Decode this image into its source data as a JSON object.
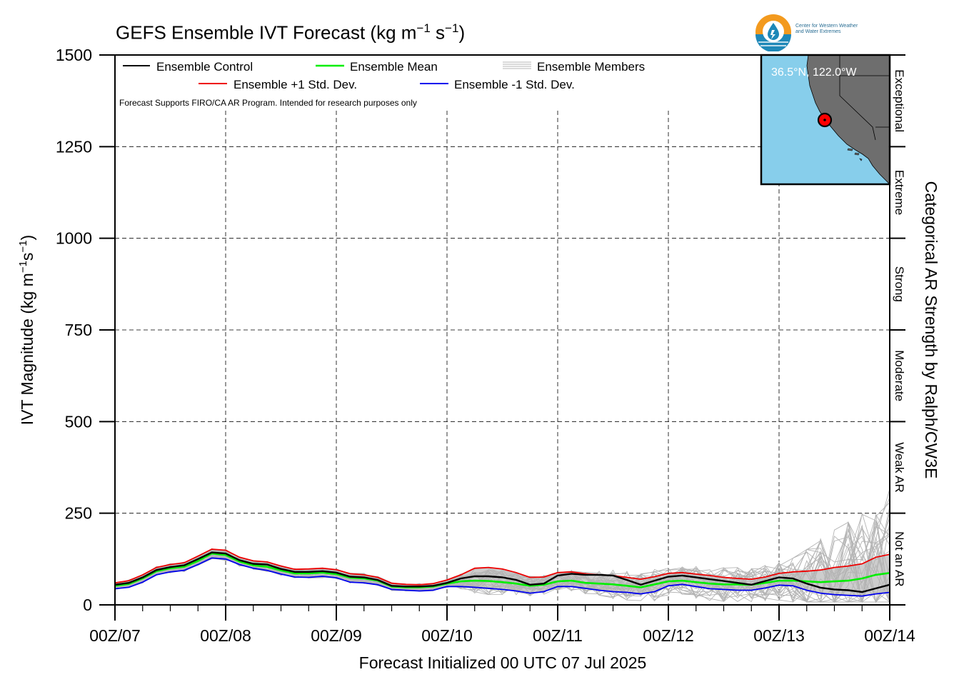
{
  "title": {
    "main": "GEFS Ensemble IVT Forecast (kg m",
    "exp1": "−1",
    "mid": " s",
    "exp2": "−1",
    "end": ")"
  },
  "logo": {
    "line1": "Center for Western Weather",
    "line2": "and Water Extremes",
    "icon": "water-drop-logo-icon",
    "colors": {
      "orange": "#f39a1e",
      "blue": "#1e88b8"
    }
  },
  "inset_map": {
    "label": "36.5°N, 122.0°W",
    "ocean_color": "#87ceeb",
    "land_color": "#6e6e6e",
    "marker_color": "#ff0000"
  },
  "colors": {
    "control": "#000000",
    "mean": "#00ee00",
    "plus_std": "#ee0000",
    "minus_std": "#0000ee",
    "members": "#b4b4b4",
    "spread": "#c8c8c8"
  },
  "chart_data": {
    "type": "line",
    "title": "GEFS Ensemble IVT Forecast (kg m−1 s−1)",
    "xlabel": "Forecast Initialized 00 UTC 07 Jul 2025",
    "ylabel": "IVT Magnitude (kg m−1s−1)",
    "right_label": "Categorical AR Strength by Ralph/CW3E",
    "note": "Forecast Supports FIRO/CA AR Program. Intended for research purposes only",
    "ylim": [
      0,
      1500
    ],
    "yticks": [
      0,
      250,
      500,
      750,
      1000,
      1250,
      1500
    ],
    "xlim": [
      0,
      168
    ],
    "xticks": [
      {
        "hour": 0,
        "label": "00Z/07"
      },
      {
        "hour": 24,
        "label": "00Z/08"
      },
      {
        "hour": 48,
        "label": "00Z/09"
      },
      {
        "hour": 72,
        "label": "00Z/10"
      },
      {
        "hour": 96,
        "label": "00Z/11"
      },
      {
        "hour": 120,
        "label": "00Z/12"
      },
      {
        "hour": 144,
        "label": "00Z/13"
      },
      {
        "hour": 168,
        "label": "00Z/14"
      }
    ],
    "grid": true,
    "legend_position": "top-left",
    "ar_categories": [
      {
        "label": "Not an AR",
        "min": 0,
        "max": 250
      },
      {
        "label": "Weak AR",
        "min": 250,
        "max": 500
      },
      {
        "label": "Moderate",
        "min": 500,
        "max": 750
      },
      {
        "label": "Strong",
        "min": 750,
        "max": 1000
      },
      {
        "label": "Extreme",
        "min": 1000,
        "max": 1250
      },
      {
        "label": "Exceptional",
        "min": 1250,
        "max": 1500
      }
    ],
    "x": [
      0,
      3,
      6,
      9,
      12,
      15,
      18,
      21,
      24,
      27,
      30,
      33,
      36,
      39,
      42,
      45,
      48,
      51,
      54,
      57,
      60,
      63,
      66,
      69,
      72,
      75,
      78,
      81,
      84,
      87,
      90,
      93,
      96,
      99,
      102,
      105,
      108,
      111,
      114,
      117,
      120,
      123,
      126,
      129,
      132,
      135,
      138,
      141,
      144,
      147,
      150,
      153,
      156,
      159,
      162,
      165,
      168
    ],
    "series": [
      {
        "name": "Ensemble Control",
        "key": "control",
        "values": [
          55,
          60,
          75,
          95,
          103,
          108,
          125,
          143,
          140,
          122,
          112,
          110,
          98,
          90,
          90,
          92,
          88,
          77,
          75,
          68,
          52,
          50,
          50,
          52,
          60,
          72,
          78,
          78,
          75,
          68,
          55,
          58,
          80,
          85,
          82,
          82,
          80,
          68,
          55,
          66,
          77,
          80,
          75,
          70,
          65,
          60,
          55,
          65,
          75,
          72,
          58,
          47,
          42,
          40,
          35,
          45,
          55
        ]
      },
      {
        "name": "Ensemble Mean",
        "key": "mean",
        "values": [
          52,
          57,
          72,
          92,
          100,
          104,
          120,
          140,
          136,
          118,
          108,
          104,
          94,
          86,
          86,
          88,
          84,
          74,
          72,
          66,
          50,
          48,
          48,
          50,
          58,
          64,
          66,
          65,
          62,
          58,
          52,
          55,
          64,
          66,
          60,
          58,
          56,
          52,
          48,
          56,
          64,
          66,
          62,
          58,
          56,
          56,
          55,
          60,
          66,
          66,
          64,
          62,
          64,
          66,
          72,
          82,
          87
        ]
      },
      {
        "name": "Ensemble +1 Std. Dev.",
        "key": "plus",
        "values": [
          60,
          66,
          82,
          102,
          110,
          115,
          133,
          152,
          149,
          130,
          120,
          117,
          106,
          97,
          98,
          100,
          96,
          85,
          82,
          75,
          59,
          56,
          55,
          58,
          68,
          82,
          100,
          102,
          98,
          88,
          75,
          76,
          88,
          90,
          85,
          82,
          80,
          75,
          70,
          77,
          86,
          88,
          84,
          80,
          75,
          72,
          70,
          76,
          86,
          90,
          92,
          95,
          102,
          106,
          112,
          130,
          138
        ]
      },
      {
        "name": "Ensemble -1 Std. Dev.",
        "key": "minus",
        "values": [
          44,
          48,
          62,
          82,
          90,
          94,
          110,
          128,
          125,
          110,
          100,
          94,
          84,
          76,
          75,
          78,
          74,
          62,
          60,
          55,
          42,
          40,
          38,
          40,
          50,
          50,
          48,
          45,
          42,
          38,
          32,
          36,
          50,
          50,
          45,
          40,
          36,
          34,
          30,
          36,
          52,
          56,
          50,
          44,
          42,
          40,
          40,
          46,
          54,
          52,
          40,
          32,
          28,
          26,
          24,
          30,
          34
        ]
      }
    ],
    "member_count": 30
  }
}
